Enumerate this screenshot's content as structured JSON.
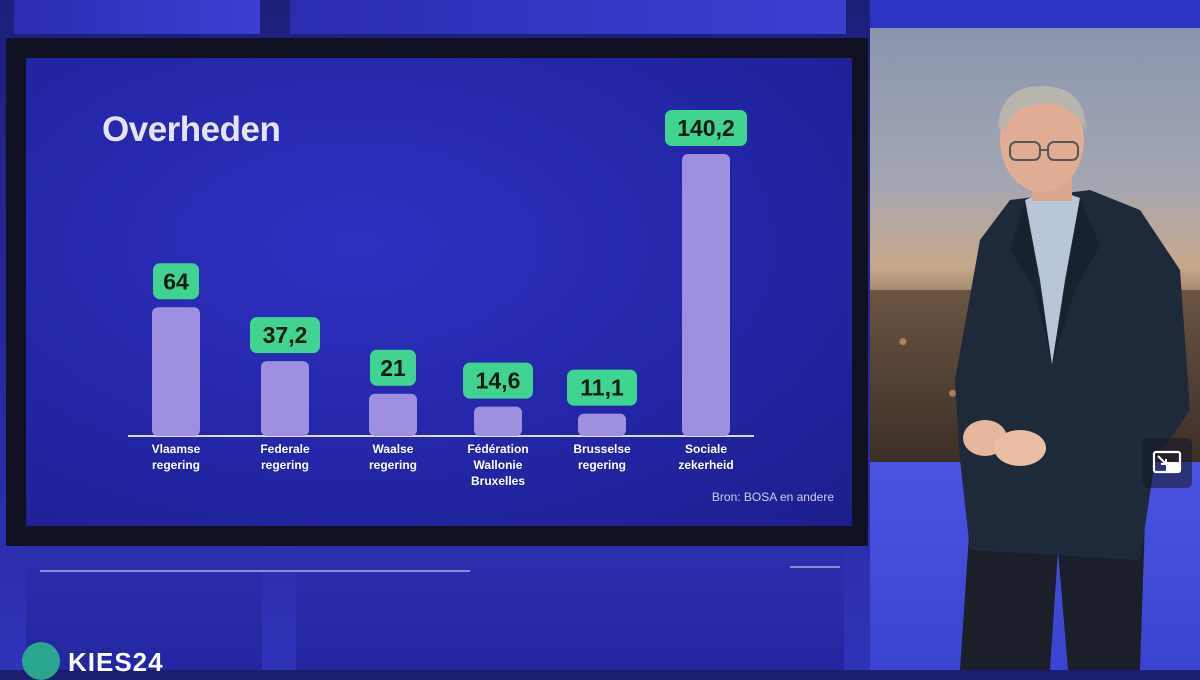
{
  "chart_data": {
    "type": "bar",
    "title": "Overheden",
    "categories": [
      [
        "Vlaamse",
        "regering"
      ],
      [
        "Federale",
        "regering"
      ],
      [
        "Waalse",
        "regering"
      ],
      [
        "Fédération",
        "Wallonie",
        "Bruxelles"
      ],
      [
        "Brusselse",
        "regering"
      ],
      [
        "Sociale",
        "zekerheid"
      ]
    ],
    "values": [
      64,
      37.2,
      21,
      14.6,
      11.1,
      140.2
    ],
    "data_labels": [
      "64",
      "37,2",
      "21",
      "14,6",
      "11,1",
      "140,2"
    ],
    "xlabel": "",
    "ylabel": "",
    "grid": false,
    "colors": {
      "bar": "#9f8fe0",
      "label_bg": "#3fd48f",
      "label_text": "#0d1a12",
      "axis": "#dcdcf4",
      "category_text": "#ffffff"
    }
  },
  "source": "Bron: BOSA en andere",
  "broadcast": {
    "logo_text": "KIES24",
    "pip_icon": "picture-in-picture-icon"
  }
}
